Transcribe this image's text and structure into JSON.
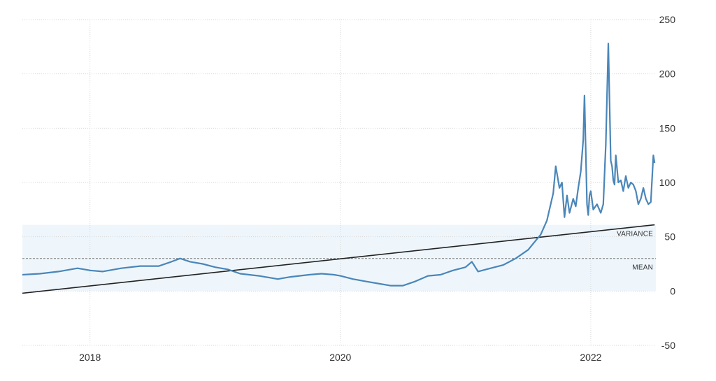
{
  "chart_data": {
    "type": "line",
    "title": "",
    "xlabel": "",
    "ylabel": "",
    "xlim": [
      2017.46,
      2022.52
    ],
    "ylim": [
      -50,
      250
    ],
    "x_ticks": [
      2018,
      2020,
      2022
    ],
    "x_tick_labels": [
      "2018",
      "2020",
      "2022"
    ],
    "y_ticks": [
      -50,
      0,
      50,
      100,
      150,
      200,
      250
    ],
    "y_tick_labels": [
      "-50",
      "0",
      "50",
      "100",
      "150",
      "200",
      "250"
    ],
    "grid": true,
    "band": {
      "from": 0,
      "to": 61,
      "label": "VARIANCE"
    },
    "mean_line": {
      "value": 30,
      "label": "MEAN"
    },
    "trend_line": {
      "x": [
        2017.46,
        2022.51
      ],
      "y": [
        -2,
        61
      ]
    },
    "series": [
      {
        "color": "#4a86b8",
        "x": [
          2017.46,
          2017.6,
          2017.75,
          2017.9,
          2018.0,
          2018.1,
          2018.25,
          2018.4,
          2018.55,
          2018.65,
          2018.72,
          2018.8,
          2018.9,
          2019.0,
          2019.1,
          2019.2,
          2019.35,
          2019.5,
          2019.6,
          2019.75,
          2019.85,
          2019.95,
          2020.0,
          2020.1,
          2020.2,
          2020.3,
          2020.4,
          2020.5,
          2020.6,
          2020.7,
          2020.8,
          2020.9,
          2021.0,
          2021.05,
          2021.1,
          2021.2,
          2021.3,
          2021.4,
          2021.5,
          2021.55,
          2021.6,
          2021.65,
          2021.7,
          2021.72,
          2021.75,
          2021.77,
          2021.79,
          2021.81,
          2021.83,
          2021.86,
          2021.88,
          2021.9,
          2021.92,
          2021.94,
          2021.95,
          2021.96,
          2021.97,
          2021.98,
          2021.99,
          2022.0,
          2022.02,
          2022.05,
          2022.08,
          2022.1,
          2022.12,
          2022.14,
          2022.16,
          2022.17,
          2022.18,
          2022.19,
          2022.2,
          2022.22,
          2022.24,
          2022.26,
          2022.28,
          2022.3,
          2022.32,
          2022.34,
          2022.36,
          2022.38,
          2022.4,
          2022.42,
          2022.44,
          2022.46,
          2022.48,
          2022.5,
          2022.51
        ],
        "y": [
          15,
          16,
          18,
          21,
          19,
          18,
          21,
          23,
          23,
          27,
          30,
          27,
          25,
          22,
          20,
          16,
          14,
          11,
          13,
          15,
          16,
          15,
          14,
          11,
          9,
          7,
          5,
          5,
          9,
          14,
          15,
          19,
          22,
          27,
          18,
          21,
          24,
          30,
          38,
          45,
          52,
          65,
          90,
          115,
          95,
          100,
          68,
          88,
          72,
          85,
          78,
          95,
          110,
          140,
          180,
          130,
          80,
          70,
          88,
          92,
          75,
          80,
          72,
          80,
          135,
          228,
          120,
          115,
          102,
          98,
          125,
          100,
          102,
          92,
          106,
          95,
          100,
          98,
          92,
          80,
          85,
          95,
          85,
          80,
          82,
          125,
          118
        ]
      }
    ]
  }
}
